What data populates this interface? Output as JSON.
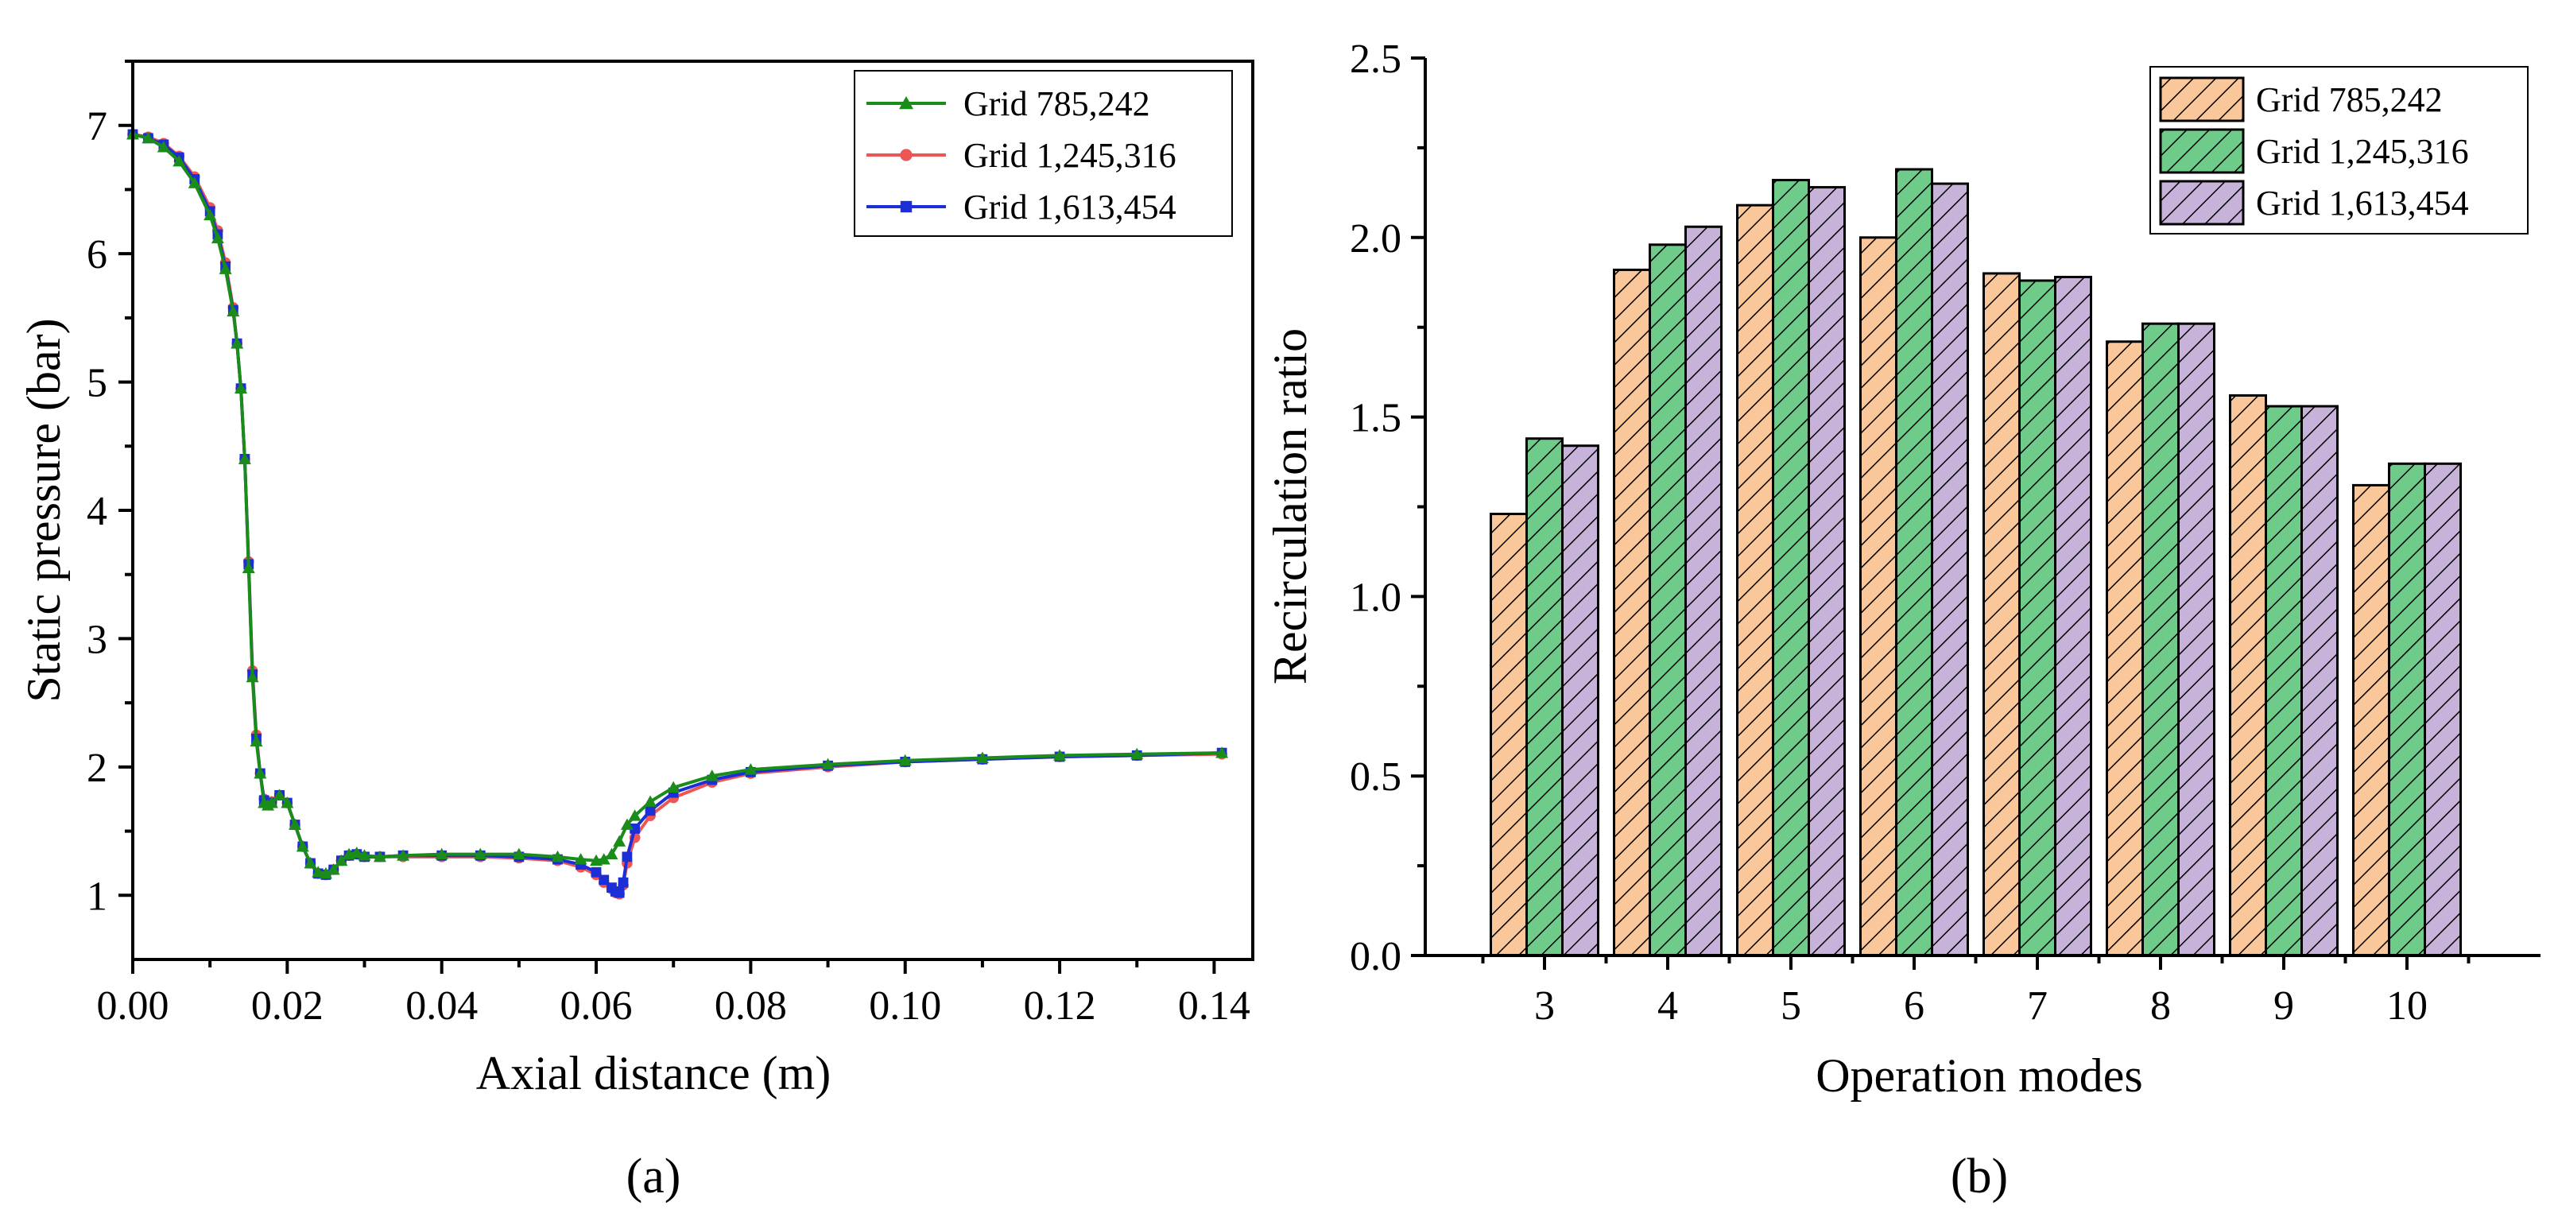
{
  "chart_data": [
    {
      "panel_label": "(a)",
      "type": "line",
      "xlabel": "Axial distance (m)",
      "ylabel": "Static pressure (bar)",
      "xlim": [
        0.0,
        0.145
      ],
      "ylim": [
        0.5,
        7.5
      ],
      "xticks": [
        "0.00",
        "0.02",
        "0.04",
        "0.06",
        "0.08",
        "0.10",
        "0.12",
        "0.14"
      ],
      "yticks": [
        "1",
        "2",
        "3",
        "4",
        "5",
        "6",
        "7"
      ],
      "legend_position": "top-right",
      "series": [
        {
          "name": "Grid 785,242",
          "color": "#1a8c1a",
          "marker": "triangle",
          "x": [
            0.0,
            0.002,
            0.004,
            0.006,
            0.008,
            0.01,
            0.011,
            0.012,
            0.013,
            0.0135,
            0.014,
            0.0145,
            0.015,
            0.0155,
            0.016,
            0.0165,
            0.017,
            0.0175,
            0.018,
            0.019,
            0.02,
            0.021,
            0.022,
            0.023,
            0.024,
            0.025,
            0.026,
            0.027,
            0.028,
            0.029,
            0.03,
            0.032,
            0.035,
            0.04,
            0.045,
            0.05,
            0.055,
            0.058,
            0.06,
            0.061,
            0.062,
            0.063,
            0.064,
            0.065,
            0.067,
            0.07,
            0.075,
            0.08,
            0.09,
            0.1,
            0.11,
            0.12,
            0.13,
            0.141
          ],
          "y": [
            6.93,
            6.9,
            6.83,
            6.72,
            6.55,
            6.3,
            6.12,
            5.88,
            5.55,
            5.3,
            4.95,
            4.4,
            3.55,
            2.7,
            2.2,
            1.95,
            1.72,
            1.7,
            1.72,
            1.78,
            1.72,
            1.55,
            1.38,
            1.25,
            1.18,
            1.17,
            1.2,
            1.27,
            1.32,
            1.33,
            1.31,
            1.3,
            1.31,
            1.32,
            1.32,
            1.32,
            1.3,
            1.28,
            1.27,
            1.28,
            1.32,
            1.42,
            1.55,
            1.62,
            1.73,
            1.84,
            1.93,
            1.98,
            2.02,
            2.05,
            2.07,
            2.09,
            2.1,
            2.11
          ]
        },
        {
          "name": "Grid 1,245,316",
          "color": "#ee5555",
          "marker": "circle",
          "x": [
            0.0,
            0.002,
            0.004,
            0.006,
            0.008,
            0.01,
            0.011,
            0.012,
            0.013,
            0.0135,
            0.014,
            0.0145,
            0.015,
            0.0155,
            0.016,
            0.0165,
            0.017,
            0.0175,
            0.018,
            0.019,
            0.02,
            0.021,
            0.022,
            0.023,
            0.024,
            0.025,
            0.026,
            0.027,
            0.028,
            0.029,
            0.03,
            0.032,
            0.035,
            0.04,
            0.045,
            0.05,
            0.055,
            0.058,
            0.06,
            0.061,
            0.062,
            0.0625,
            0.063,
            0.0635,
            0.064,
            0.065,
            0.067,
            0.07,
            0.075,
            0.08,
            0.09,
            0.1,
            0.11,
            0.12,
            0.13,
            0.141
          ],
          "y": [
            6.93,
            6.91,
            6.86,
            6.76,
            6.6,
            6.36,
            6.18,
            5.93,
            5.58,
            5.3,
            4.95,
            4.4,
            3.6,
            2.75,
            2.25,
            1.95,
            1.75,
            1.72,
            1.73,
            1.78,
            1.72,
            1.55,
            1.38,
            1.25,
            1.17,
            1.16,
            1.2,
            1.27,
            1.31,
            1.32,
            1.3,
            1.3,
            1.3,
            1.3,
            1.3,
            1.29,
            1.27,
            1.22,
            1.16,
            1.1,
            1.05,
            1.02,
            1.01,
            1.08,
            1.25,
            1.45,
            1.62,
            1.76,
            1.88,
            1.95,
            2.0,
            2.04,
            2.06,
            2.08,
            2.09,
            2.1
          ]
        },
        {
          "name": "Grid 1,613,454",
          "color": "#1c2fd6",
          "marker": "square",
          "x": [
            0.0,
            0.002,
            0.004,
            0.006,
            0.008,
            0.01,
            0.011,
            0.012,
            0.013,
            0.0135,
            0.014,
            0.0145,
            0.015,
            0.0155,
            0.016,
            0.0165,
            0.017,
            0.0175,
            0.018,
            0.019,
            0.02,
            0.021,
            0.022,
            0.023,
            0.024,
            0.025,
            0.026,
            0.027,
            0.028,
            0.029,
            0.03,
            0.032,
            0.035,
            0.04,
            0.045,
            0.05,
            0.055,
            0.058,
            0.06,
            0.061,
            0.062,
            0.0625,
            0.063,
            0.0635,
            0.064,
            0.065,
            0.067,
            0.07,
            0.075,
            0.08,
            0.09,
            0.1,
            0.11,
            0.12,
            0.13,
            0.141
          ],
          "y": [
            6.93,
            6.9,
            6.85,
            6.75,
            6.58,
            6.33,
            6.15,
            5.9,
            5.56,
            5.3,
            4.95,
            4.4,
            3.58,
            2.72,
            2.22,
            1.95,
            1.74,
            1.71,
            1.72,
            1.78,
            1.72,
            1.55,
            1.38,
            1.25,
            1.17,
            1.16,
            1.2,
            1.27,
            1.31,
            1.32,
            1.3,
            1.3,
            1.31,
            1.31,
            1.31,
            1.3,
            1.28,
            1.24,
            1.18,
            1.12,
            1.06,
            1.03,
            1.02,
            1.1,
            1.3,
            1.52,
            1.66,
            1.8,
            1.9,
            1.96,
            2.01,
            2.04,
            2.06,
            2.08,
            2.09,
            2.11
          ]
        }
      ]
    },
    {
      "panel_label": "(b)",
      "type": "bar",
      "xlabel": "Operation modes",
      "ylabel": "Recirculation ratio",
      "ylim": [
        0.0,
        2.5
      ],
      "yticks": [
        "0.0",
        "0.5",
        "1.0",
        "1.5",
        "2.0",
        "2.5"
      ],
      "categories": [
        "3",
        "4",
        "5",
        "6",
        "7",
        "8",
        "9",
        "10"
      ],
      "legend_position": "top-right",
      "series": [
        {
          "name": "Grid 785,242",
          "color": "#f9c79a",
          "values": [
            1.23,
            1.91,
            2.09,
            2.0,
            1.9,
            1.71,
            1.56,
            1.31
          ]
        },
        {
          "name": "Grid 1,245,316",
          "color": "#6fcb8a",
          "values": [
            1.44,
            1.98,
            2.16,
            2.19,
            1.88,
            1.76,
            1.53,
            1.37
          ]
        },
        {
          "name": "Grid 1,613,454",
          "color": "#c7b2d9",
          "values": [
            1.42,
            2.03,
            2.14,
            2.15,
            1.89,
            1.76,
            1.53,
            1.37
          ]
        }
      ]
    }
  ]
}
